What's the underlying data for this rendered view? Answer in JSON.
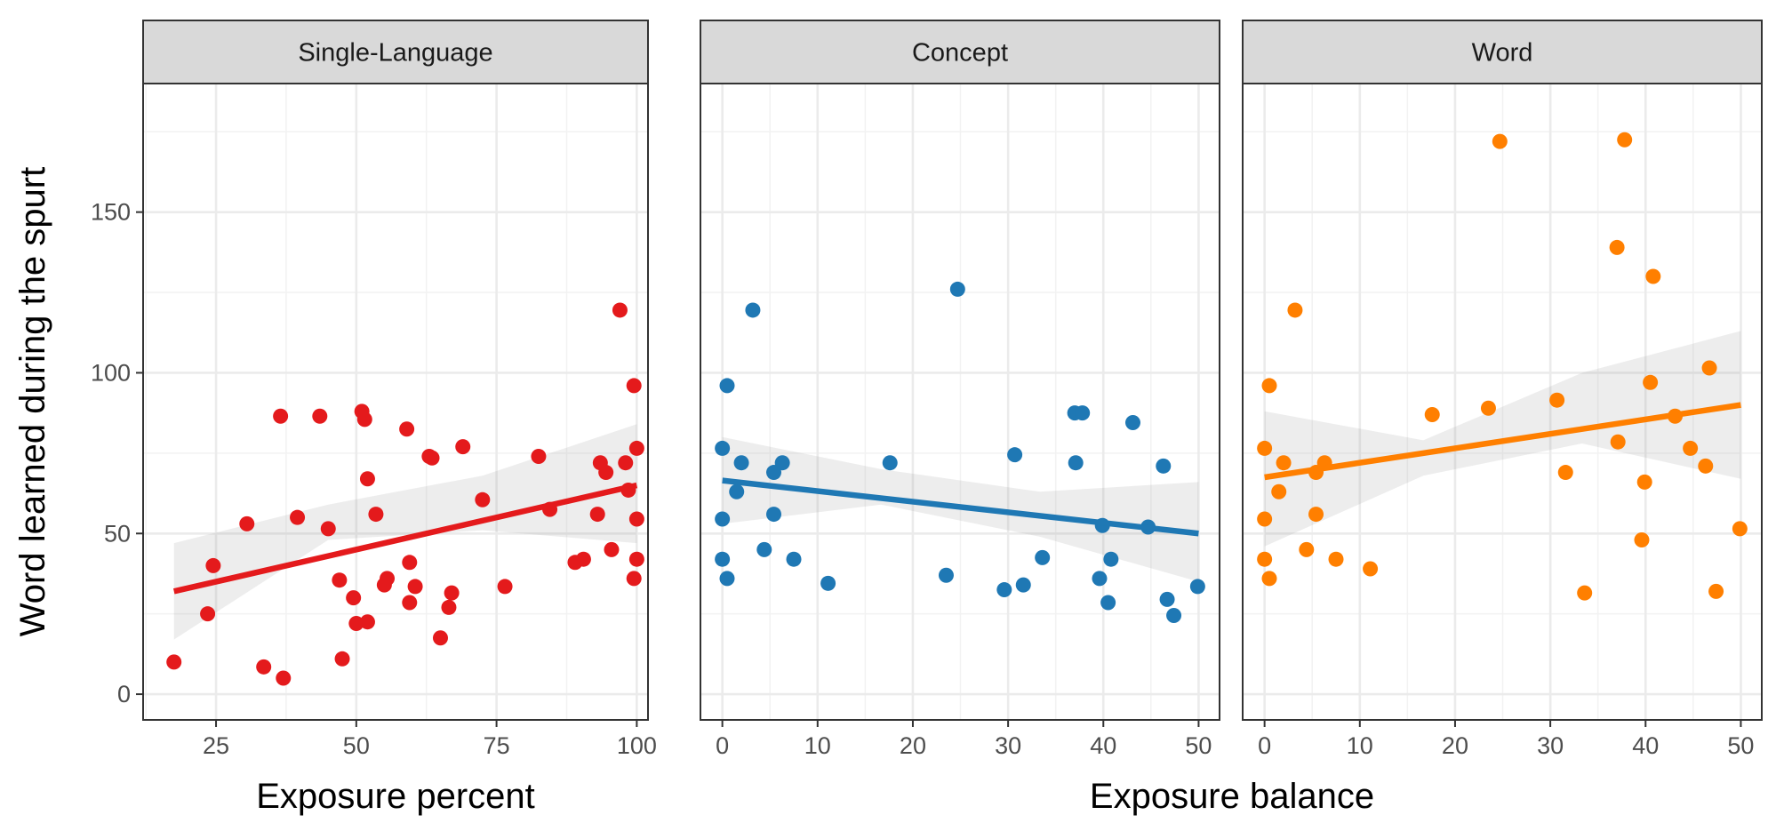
{
  "chart_data": {
    "type": "scatter",
    "ylabel": "Word learned during the spurt",
    "ylim": [
      -8,
      190
    ],
    "y_ticks": [
      0,
      50,
      100,
      150
    ],
    "panels": [
      {
        "name": "Single-Language",
        "xlabel": "Exposure percent",
        "xlim": [
          12,
          102
        ],
        "x_ticks": [
          25,
          50,
          75,
          100
        ],
        "color": "#e41a1c",
        "fit": {
          "x0": 17.5,
          "y0": 32,
          "x1": 100,
          "y1": 65
        },
        "ci": {
          "lower": [
            17,
            48,
            51,
            47
          ],
          "upper": [
            47,
            59,
            68,
            84
          ]
        },
        "points": [
          [
            17.5,
            10
          ],
          [
            23.5,
            25
          ],
          [
            24.5,
            40
          ],
          [
            30.5,
            53
          ],
          [
            33.5,
            8.5
          ],
          [
            36.5,
            86.5
          ],
          [
            37,
            5
          ],
          [
            39.5,
            55
          ],
          [
            43.5,
            86.5
          ],
          [
            45,
            51.5
          ],
          [
            47,
            35.5
          ],
          [
            47.5,
            11
          ],
          [
            49.5,
            30
          ],
          [
            50,
            22
          ],
          [
            51,
            88
          ],
          [
            51.5,
            85.5
          ],
          [
            52,
            67
          ],
          [
            52,
            22.5
          ],
          [
            53.5,
            56
          ],
          [
            55,
            34
          ],
          [
            55.5,
            36
          ],
          [
            59,
            82.5
          ],
          [
            59.5,
            41
          ],
          [
            59.5,
            28.5
          ],
          [
            60.5,
            33.5
          ],
          [
            63,
            74
          ],
          [
            63.5,
            73.5
          ],
          [
            65,
            17.5
          ],
          [
            66.5,
            27
          ],
          [
            67,
            31.5
          ],
          [
            69,
            77
          ],
          [
            72.5,
            60.5
          ],
          [
            76.5,
            33.5
          ],
          [
            82.5,
            74
          ],
          [
            84.5,
            57.5
          ],
          [
            89,
            41
          ],
          [
            90.5,
            42
          ],
          [
            93,
            56
          ],
          [
            93.5,
            72
          ],
          [
            94.5,
            69
          ],
          [
            95.5,
            45
          ],
          [
            97,
            119.5
          ],
          [
            98,
            72
          ],
          [
            98.5,
            63.5
          ],
          [
            99.5,
            96
          ],
          [
            99.5,
            36
          ],
          [
            100,
            76.5
          ],
          [
            100,
            54.5
          ],
          [
            100,
            42
          ]
        ]
      },
      {
        "name": "Concept",
        "xlabel": "",
        "xlim": [
          -2.3,
          52.2
        ],
        "x_ticks": [
          0,
          10,
          20,
          30,
          40,
          50
        ],
        "color": "#1f78b4",
        "fit": {
          "x0": 0,
          "y0": 66.5,
          "x1": 50,
          "y1": 50
        },
        "ci": {
          "lower": [
            53,
            59,
            49,
            35
          ],
          "upper": [
            80,
            70,
            63,
            66
          ]
        },
        "points": [
          [
            0,
            76.5
          ],
          [
            0,
            54.5
          ],
          [
            0,
            42
          ],
          [
            0.5,
            36
          ],
          [
            0.5,
            96
          ],
          [
            1.5,
            63
          ],
          [
            2,
            72
          ],
          [
            3.2,
            119.5
          ],
          [
            4.4,
            45
          ],
          [
            5.4,
            69
          ],
          [
            5.4,
            56
          ],
          [
            6.3,
            72
          ],
          [
            7.5,
            42
          ],
          [
            11.1,
            34.5
          ],
          [
            17.6,
            72
          ],
          [
            23.5,
            37
          ],
          [
            24.7,
            126
          ],
          [
            29.6,
            32.5
          ],
          [
            30.7,
            74.5
          ],
          [
            31.6,
            34
          ],
          [
            33.6,
            42.5
          ],
          [
            37,
            87.5
          ],
          [
            37.8,
            87.5
          ],
          [
            37.1,
            72
          ],
          [
            39.6,
            36
          ],
          [
            39.9,
            52.5
          ],
          [
            40.5,
            28.5
          ],
          [
            40.8,
            42
          ],
          [
            43.1,
            84.5
          ],
          [
            44.7,
            52
          ],
          [
            46.3,
            71
          ],
          [
            46.7,
            29.5
          ],
          [
            47.4,
            24.5
          ],
          [
            49.9,
            33.5
          ]
        ]
      },
      {
        "name": "Word",
        "xlabel": "",
        "xlim": [
          -2.3,
          52.2
        ],
        "x_ticks": [
          0,
          10,
          20,
          30,
          40,
          50
        ],
        "color": "#ff7f00",
        "fit": {
          "x0": 0,
          "y0": 67.5,
          "x1": 50,
          "y1": 90
        },
        "ci": {
          "lower": [
            46,
            68,
            78,
            67
          ],
          "upper": [
            88,
            79,
            100,
            113
          ]
        },
        "points": [
          [
            0,
            76.5
          ],
          [
            0,
            54.5
          ],
          [
            0,
            42
          ],
          [
            0.5,
            36
          ],
          [
            0.5,
            96
          ],
          [
            1.5,
            63
          ],
          [
            2,
            72
          ],
          [
            3.2,
            119.5
          ],
          [
            4.4,
            45
          ],
          [
            5.4,
            69
          ],
          [
            5.4,
            56
          ],
          [
            6.3,
            72
          ],
          [
            7.5,
            42
          ],
          [
            11.1,
            39
          ],
          [
            17.6,
            87
          ],
          [
            23.5,
            89
          ],
          [
            24.7,
            172
          ],
          [
            30.7,
            91.5
          ],
          [
            31.6,
            69
          ],
          [
            33.6,
            31.5
          ],
          [
            37,
            139
          ],
          [
            37.1,
            78.5
          ],
          [
            37.8,
            172.5
          ],
          [
            39.6,
            48
          ],
          [
            39.9,
            66
          ],
          [
            40.5,
            97
          ],
          [
            40.8,
            130
          ],
          [
            43.1,
            86.5
          ],
          [
            44.7,
            76.5
          ],
          [
            46.3,
            71
          ],
          [
            46.7,
            101.5
          ],
          [
            47.4,
            32
          ],
          [
            49.9,
            51.5
          ]
        ]
      }
    ]
  },
  "labels": {
    "ylabel": "Word learned during the spurt",
    "xlabel_left": "Exposure percent",
    "xlabel_right": "Exposure balance"
  }
}
